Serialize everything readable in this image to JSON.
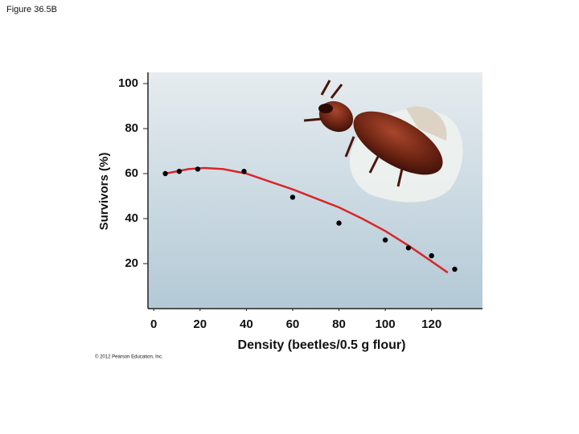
{
  "figure_label": "Figure 36.5B",
  "copyright": "© 2012 Pearson Education, Inc.",
  "chart_data": {
    "type": "scatter",
    "xlabel": "Density (beetles/0.5 g flour)",
    "ylabel": "Survivors (%)",
    "xlim": [
      -2.5,
      142
    ],
    "ylim": [
      0,
      105
    ],
    "xticks": [
      0,
      20,
      40,
      60,
      80,
      100,
      120
    ],
    "yticks": [
      20,
      40,
      60,
      80,
      100
    ],
    "series": [
      {
        "type": "scatter",
        "color": "#000000",
        "x": [
          5,
          11,
          19,
          39,
          60,
          80,
          100,
          110,
          120,
          130
        ],
        "values": [
          60,
          61,
          62,
          61,
          49.5,
          38,
          30.5,
          27,
          23.5,
          17.5
        ]
      },
      {
        "type": "line",
        "color": "#d9262a",
        "x": [
          5,
          15,
          22,
          30,
          40,
          50,
          60,
          70,
          80,
          90,
          100,
          110,
          120,
          127
        ],
        "values": [
          60,
          62,
          62.5,
          62,
          60,
          56.5,
          53,
          49,
          45,
          40,
          34.5,
          28,
          21,
          16
        ]
      }
    ]
  }
}
